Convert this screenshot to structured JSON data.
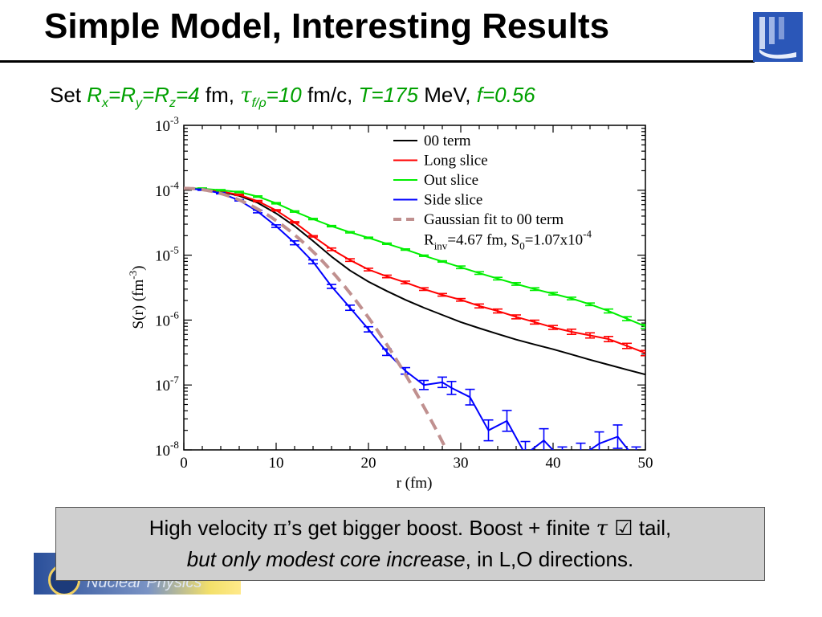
{
  "slide": {
    "title": "Simple Model, Interesting Results",
    "params": {
      "prefix": "Set ",
      "r": "R",
      "x_sub": "x",
      "eq1": "=R",
      "y_sub": "y",
      "eq2": "=R",
      "z_sub": "z",
      "r_val": "=4",
      "fm": " fm, ",
      "tau": "τ",
      "tau_sub": "f/ρ",
      "tau_val": "=10",
      "fmc": " fm/c, ",
      "T": "T=175",
      "mev": " MeV, ",
      "f": "f=0.56"
    },
    "callout": {
      "line1_a": "High velocity ",
      "pi": "π",
      "line1_b": "’s get bigger boost.  Boost + finite ",
      "tau": "τ",
      "check": " ☑",
      "line1_c": " tail,",
      "line2_italic": "but only modest core increase",
      "line2_rest": ", in L,O directions."
    },
    "banner_text": "Nuclear Physics"
  },
  "chart_data": {
    "type": "line",
    "xlabel": "r (fm)",
    "ylabel": "S(r) (fm",
    "ylabel_exp": "-3",
    "ylabel_close": ")",
    "xlim": [
      0,
      50
    ],
    "ylim_log10": [
      -8,
      -3
    ],
    "x_ticks": [
      "0",
      "10",
      "20",
      "30",
      "40",
      "50"
    ],
    "y_ticks": [
      {
        "base": "10",
        "exp": "-8"
      },
      {
        "base": "10",
        "exp": "-7"
      },
      {
        "base": "10",
        "exp": "-6"
      },
      {
        "base": "10",
        "exp": "-5"
      },
      {
        "base": "10",
        "exp": "-4"
      },
      {
        "base": "10",
        "exp": "-3"
      }
    ],
    "legend": {
      "placement": "top-right",
      "entries": [
        {
          "label": "00 term",
          "color": "#000000",
          "dash": false
        },
        {
          "label": "Long slice",
          "color": "#ff0000",
          "dash": false
        },
        {
          "label": "Out slice",
          "color": "#00ee00",
          "dash": false
        },
        {
          "label": "Side slice",
          "color": "#0000ff",
          "dash": false
        },
        {
          "label": "Gaussian fit to 00 term",
          "color": "#c0908f",
          "dash": true
        }
      ],
      "fit_line2": {
        "r": "R",
        "r_sub": "inv",
        "r_val": "=4.67 fm, S",
        "s_sub": "0",
        "s_val": "=1.07x10",
        "s_exp": "-4"
      }
    },
    "series": [
      {
        "name": "00 term",
        "color": "#000000",
        "width": 2,
        "errorbars": false,
        "x": [
          0,
          2,
          4,
          6,
          8,
          10,
          12,
          14,
          16,
          18,
          20,
          22,
          24,
          26,
          28,
          30,
          32,
          34,
          36,
          38,
          40,
          42,
          44,
          46,
          48,
          50
        ],
        "y": [
          0.000107,
          0.000105,
          9.5e-05,
          8.2e-05,
          6.4e-05,
          4.4e-05,
          2.8e-05,
          1.65e-05,
          9.5e-06,
          5.8e-06,
          3.9e-06,
          2.8e-06,
          2.05e-06,
          1.55e-06,
          1.2e-06,
          9.3e-07,
          7.5e-07,
          6.1e-07,
          5e-07,
          4.2e-07,
          3.55e-07,
          2.95e-07,
          2.45e-07,
          2.05e-07,
          1.72e-07,
          1.45e-07
        ]
      },
      {
        "name": "Long slice",
        "color": "#ff0000",
        "width": 2,
        "errorbars": true,
        "x": [
          0,
          2,
          4,
          6,
          8,
          10,
          12,
          14,
          16,
          18,
          20,
          22,
          24,
          26,
          28,
          30,
          32,
          34,
          36,
          38,
          40,
          42,
          44,
          46,
          48,
          50
        ],
        "y": [
          0.000107,
          0.000105,
          9.6e-05,
          8.5e-05,
          6.8e-05,
          4.9e-05,
          3.2e-05,
          1.95e-05,
          1.23e-05,
          8.4e-06,
          6e-06,
          4.7e-06,
          3.8e-06,
          3e-06,
          2.45e-06,
          2.05e-06,
          1.65e-06,
          1.38e-06,
          1.12e-06,
          9.3e-07,
          7.7e-07,
          6.6e-07,
          5.8e-07,
          5.1e-07,
          4e-07,
          3.1e-07
        ],
        "err": [
          0.01,
          0.01,
          0.01,
          0.01,
          0.01,
          0.01,
          0.01,
          0.01,
          0.02,
          0.02,
          0.02,
          0.02,
          0.02,
          0.02,
          0.02,
          0.02,
          0.03,
          0.03,
          0.03,
          0.03,
          0.03,
          0.04,
          0.04,
          0.04,
          0.04,
          0.04
        ]
      },
      {
        "name": "Out slice",
        "color": "#00ee00",
        "width": 2,
        "errorbars": true,
        "x": [
          0,
          2,
          4,
          6,
          8,
          10,
          12,
          14,
          16,
          18,
          20,
          22,
          24,
          26,
          28,
          30,
          32,
          34,
          36,
          38,
          40,
          42,
          44,
          46,
          48,
          50
        ],
        "y": [
          0.000107,
          0.000106,
          0.0001,
          9.4e-05,
          8e-05,
          6.3e-05,
          4.7e-05,
          3.6e-05,
          2.8e-05,
          2.25e-05,
          1.85e-05,
          1.5e-05,
          1.22e-05,
          9.8e-06,
          8e-06,
          6.5e-06,
          5.3e-06,
          4.35e-06,
          3.6e-06,
          3e-06,
          2.55e-06,
          2.15e-06,
          1.75e-06,
          1.38e-06,
          1.05e-06,
          8e-07
        ],
        "err": [
          0.01,
          0.01,
          0.01,
          0.01,
          0.01,
          0.01,
          0.01,
          0.01,
          0.01,
          0.01,
          0.01,
          0.01,
          0.01,
          0.01,
          0.01,
          0.02,
          0.02,
          0.02,
          0.02,
          0.02,
          0.02,
          0.02,
          0.02,
          0.03,
          0.03,
          0.03
        ]
      },
      {
        "name": "Side slice",
        "color": "#0000ff",
        "width": 2,
        "errorbars": true,
        "x": [
          0,
          2,
          4,
          6,
          8,
          10,
          12,
          14,
          16,
          18,
          20,
          22,
          24,
          26,
          28,
          29,
          31,
          33,
          35,
          37,
          39,
          41,
          43,
          45,
          47,
          49
        ],
        "y": [
          0.000107,
          0.000102,
          9e-05,
          7e-05,
          4.7e-05,
          2.8e-05,
          1.55e-05,
          7.9e-06,
          3.3e-06,
          1.55e-06,
          7.2e-07,
          3.2e-07,
          1.65e-07,
          1e-07,
          1.1e-07,
          9e-08,
          6.5e-08,
          2e-08,
          2.8e-08,
          8.5e-09,
          1.4e-08,
          7e-09,
          8e-09,
          1.25e-08,
          1.6e-08,
          7e-09
        ],
        "err": [
          0.01,
          0.01,
          0.01,
          0.01,
          0.02,
          0.02,
          0.03,
          0.03,
          0.03,
          0.04,
          0.04,
          0.05,
          0.05,
          0.07,
          0.08,
          0.1,
          0.12,
          0.16,
          0.16,
          0.2,
          0.18,
          0.2,
          0.2,
          0.18,
          0.18,
          0.2
        ]
      },
      {
        "name": "Gaussian fit to 00 term",
        "color": "#c0908f",
        "width": 4,
        "dash": "14,8",
        "errorbars": false,
        "formula": "S0*exp(-r^2/(4*Rinv^2))",
        "S0": 0.000107,
        "Rinv": 4.67
      }
    ]
  }
}
